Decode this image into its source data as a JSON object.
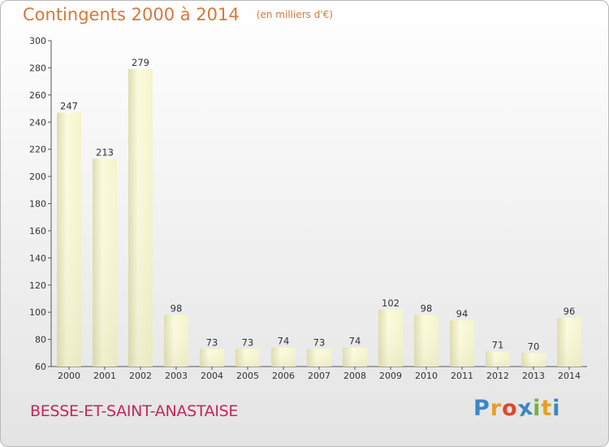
{
  "header": {
    "title": "Contingents 2000 à 2014",
    "subtitle": "(en milliers d'€)"
  },
  "footer": {
    "commune": "BESSE-ET-SAINT-ANASTAISE",
    "brand": "Proxiti",
    "brand_colors": [
      "#3a86c8",
      "#e8a020",
      "#e0462c",
      "#3a86c8",
      "#7bb03a",
      "#e8a020",
      "#3a86c8"
    ]
  },
  "chart_data": {
    "type": "bar",
    "title": "Contingents 2000 à 2014",
    "subtitle": "(en milliers d'€)",
    "categories": [
      "2000",
      "2001",
      "2002",
      "2003",
      "2004",
      "2005",
      "2006",
      "2007",
      "2008",
      "2009",
      "2010",
      "2011",
      "2012",
      "2013",
      "2014"
    ],
    "values": [
      247,
      213,
      279,
      98,
      73,
      73,
      74,
      73,
      74,
      102,
      98,
      94,
      71,
      70,
      96
    ],
    "ylim": [
      60,
      300
    ],
    "yticks": [
      60,
      80,
      100,
      120,
      140,
      160,
      180,
      200,
      220,
      240,
      260,
      280,
      300
    ],
    "xlabel": "",
    "ylabel": "",
    "grid": false,
    "bar_color": "#f2f2cc"
  }
}
